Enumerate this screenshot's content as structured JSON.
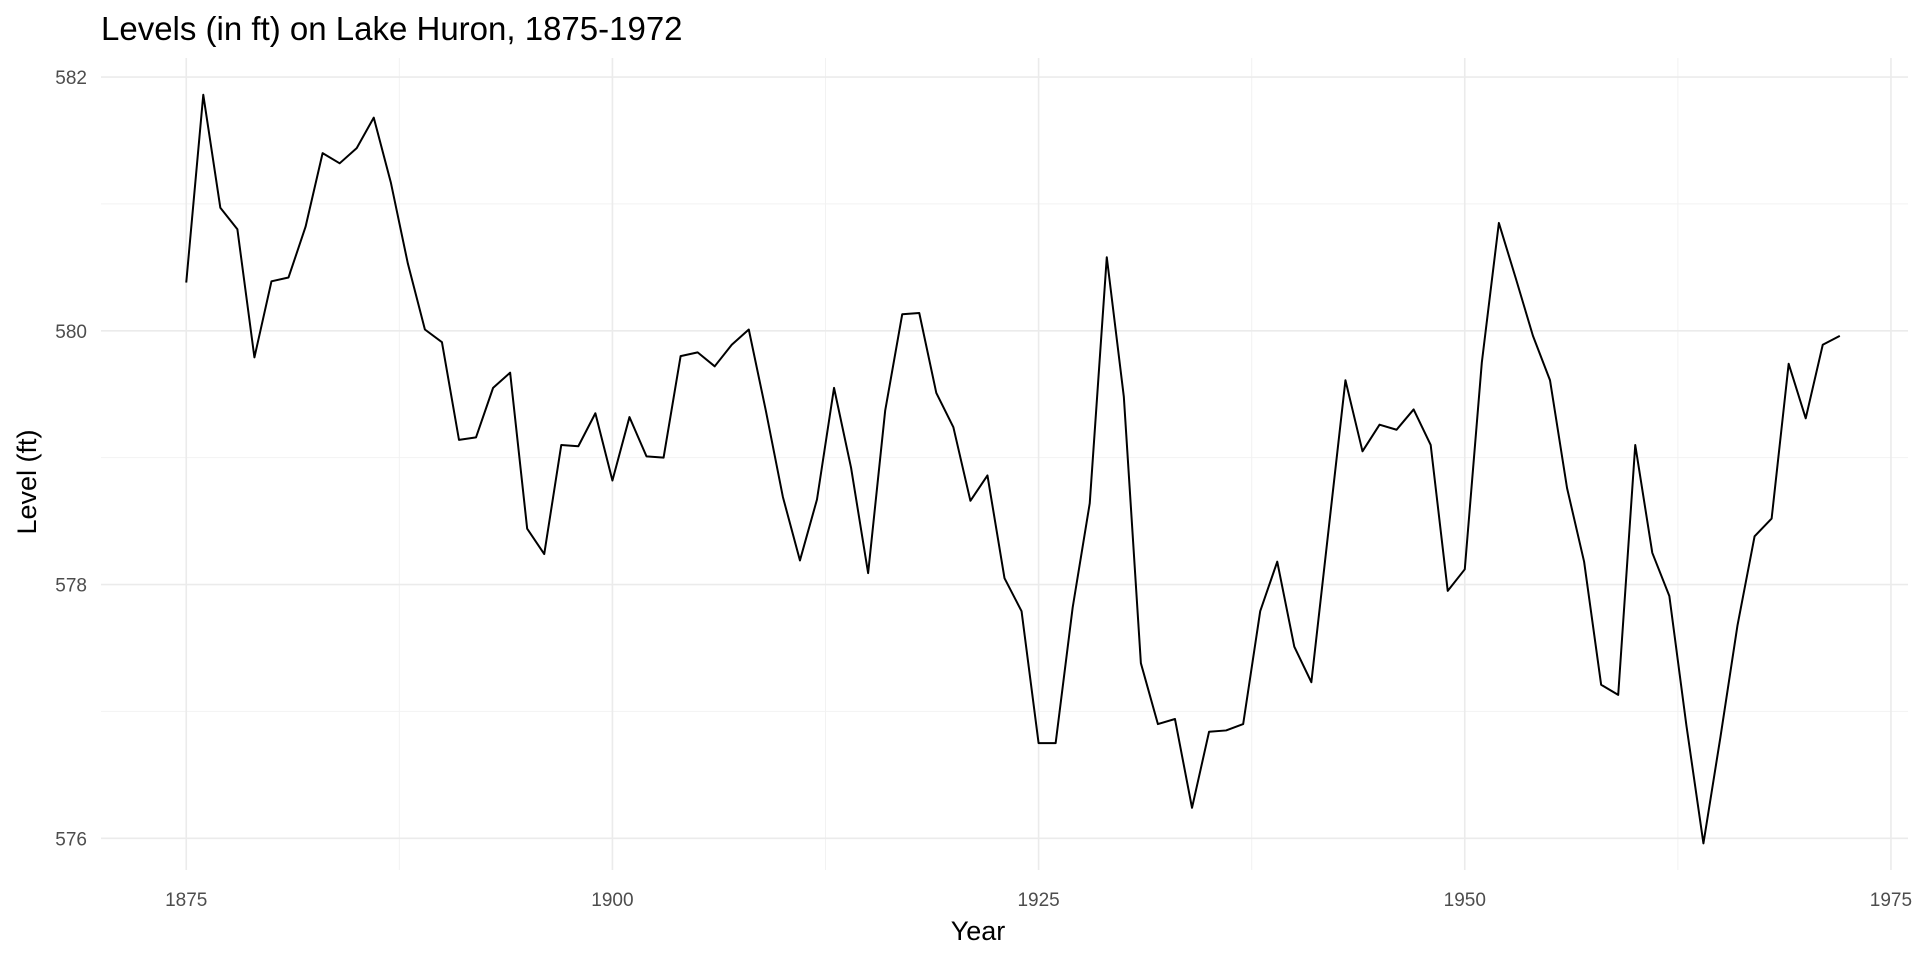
{
  "chart_data": {
    "type": "line",
    "title": "Levels (in ft) on Lake Huron, 1875-1972",
    "xlabel": "Year",
    "ylabel": "Level (ft)",
    "xlim": [
      1870,
      1976
    ],
    "ylim": [
      575.75,
      582.15
    ],
    "x_major_ticks": [
      1875,
      1900,
      1925,
      1950,
      1975
    ],
    "x_tick_labels": [
      "1875",
      "1900",
      "1925",
      "1950",
      "1975"
    ],
    "y_major_ticks": [
      576,
      578,
      580,
      582
    ],
    "y_tick_labels": [
      "576",
      "578",
      "580",
      "582"
    ],
    "grid": true,
    "legend": "none",
    "line_color": "#000000",
    "x": [
      1875,
      1876,
      1877,
      1878,
      1879,
      1880,
      1881,
      1882,
      1883,
      1884,
      1885,
      1886,
      1887,
      1888,
      1889,
      1890,
      1891,
      1892,
      1893,
      1894,
      1895,
      1896,
      1897,
      1898,
      1899,
      1900,
      1901,
      1902,
      1903,
      1904,
      1905,
      1906,
      1907,
      1908,
      1909,
      1910,
      1911,
      1912,
      1913,
      1914,
      1915,
      1916,
      1917,
      1918,
      1919,
      1920,
      1921,
      1922,
      1923,
      1924,
      1925,
      1926,
      1927,
      1928,
      1929,
      1930,
      1931,
      1932,
      1933,
      1934,
      1935,
      1936,
      1937,
      1938,
      1939,
      1940,
      1941,
      1942,
      1943,
      1944,
      1945,
      1946,
      1947,
      1948,
      1949,
      1950,
      1951,
      1952,
      1953,
      1954,
      1955,
      1956,
      1957,
      1958,
      1959,
      1960,
      1961,
      1962,
      1963,
      1964,
      1965,
      1966,
      1967,
      1968,
      1969,
      1970,
      1971,
      1972
    ],
    "series": [
      {
        "values": [
          580.38,
          581.86,
          580.97,
          580.8,
          579.79,
          580.39,
          580.42,
          580.82,
          581.4,
          581.32,
          581.44,
          581.68,
          581.17,
          580.53,
          580.01,
          579.91,
          579.14,
          579.16,
          579.55,
          579.67,
          578.44,
          578.24,
          579.1,
          579.09,
          579.35,
          578.82,
          579.32,
          579.01,
          579.0,
          579.8,
          579.83,
          579.72,
          579.89,
          580.01,
          579.37,
          578.69,
          578.19,
          578.67,
          579.55,
          578.92,
          578.09,
          579.37,
          580.13,
          580.14,
          579.51,
          579.24,
          578.66,
          578.86,
          578.05,
          577.79,
          576.75,
          576.75,
          577.82,
          578.64,
          580.58,
          579.48,
          577.38,
          576.9,
          576.94,
          576.24,
          576.84,
          576.85,
          576.9,
          577.79,
          578.18,
          577.51,
          577.23,
          578.42,
          579.61,
          579.05,
          579.26,
          579.22,
          579.38,
          579.1,
          577.95,
          578.12,
          579.75,
          580.85,
          580.41,
          579.96,
          579.61,
          578.76,
          578.18,
          577.21,
          577.13,
          579.1,
          578.25,
          577.91,
          576.89,
          575.96,
          576.8,
          577.68,
          578.38,
          578.52,
          579.74,
          579.31,
          579.89,
          579.96
        ]
      }
    ]
  }
}
